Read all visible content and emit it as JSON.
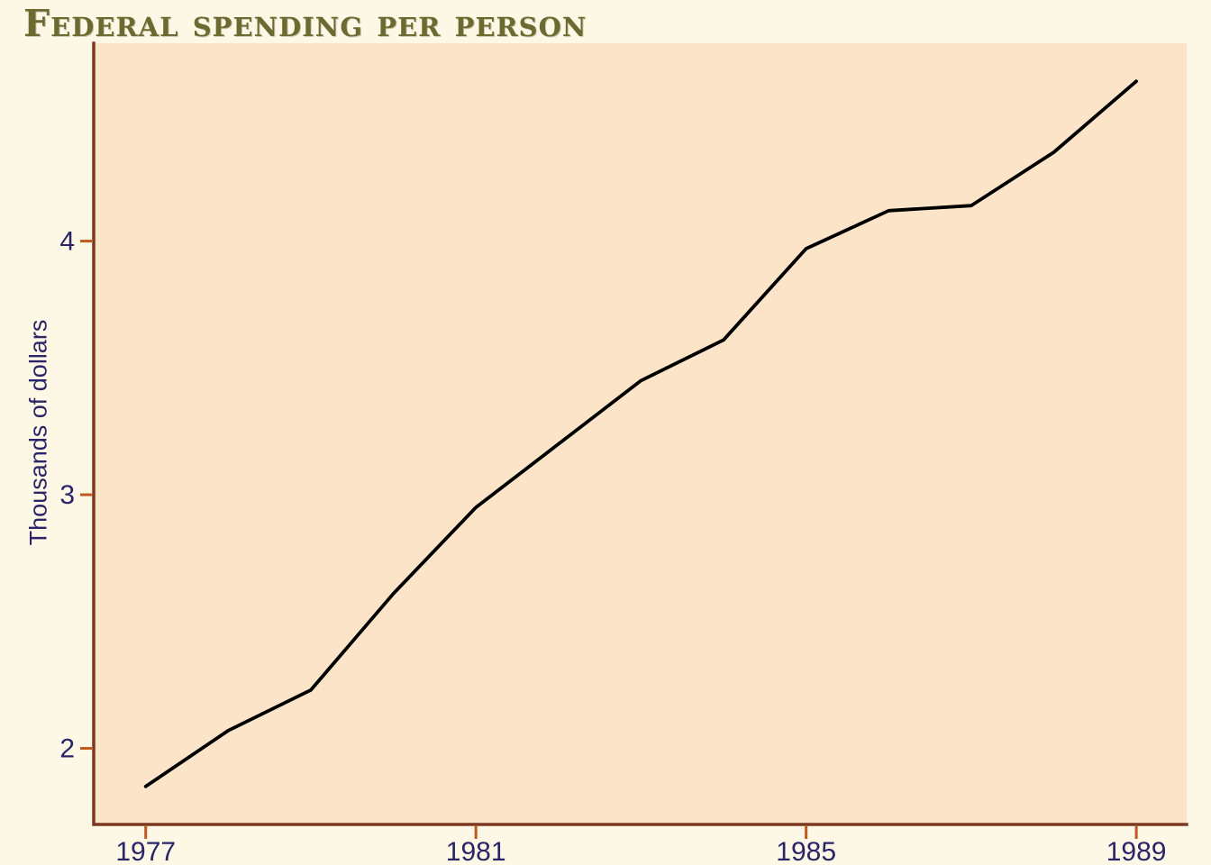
{
  "colors": {
    "page_bg": "#fdf7e6",
    "plot_bg": "#fce4c8",
    "axis": "#7d3920",
    "tick": "#c2571f",
    "label_navy": "#2a2569",
    "title_olive": "#6d6a31",
    "line": "#000000"
  },
  "chart_data": {
    "type": "line",
    "title": "Federal spending per person",
    "ylabel": "Thousands of dollars",
    "xlabel": "",
    "x": [
      1977,
      1978,
      1979,
      1980,
      1981,
      1982,
      1983,
      1984,
      1985,
      1986,
      1987,
      1988,
      1989
    ],
    "values": [
      1.85,
      2.07,
      2.23,
      2.61,
      2.95,
      3.2,
      3.45,
      3.61,
      3.97,
      4.12,
      4.14,
      4.35,
      4.63
    ],
    "series_name": "Federal spending per person (thousands of dollars)",
    "x_ticks": [
      1977,
      1981,
      1985,
      1989
    ],
    "y_ticks": [
      2,
      3,
      4
    ],
    "xlim": [
      1976.37,
      1989.61
    ],
    "ylim": [
      1.7,
      4.78
    ],
    "grid": false,
    "legend": false
  }
}
